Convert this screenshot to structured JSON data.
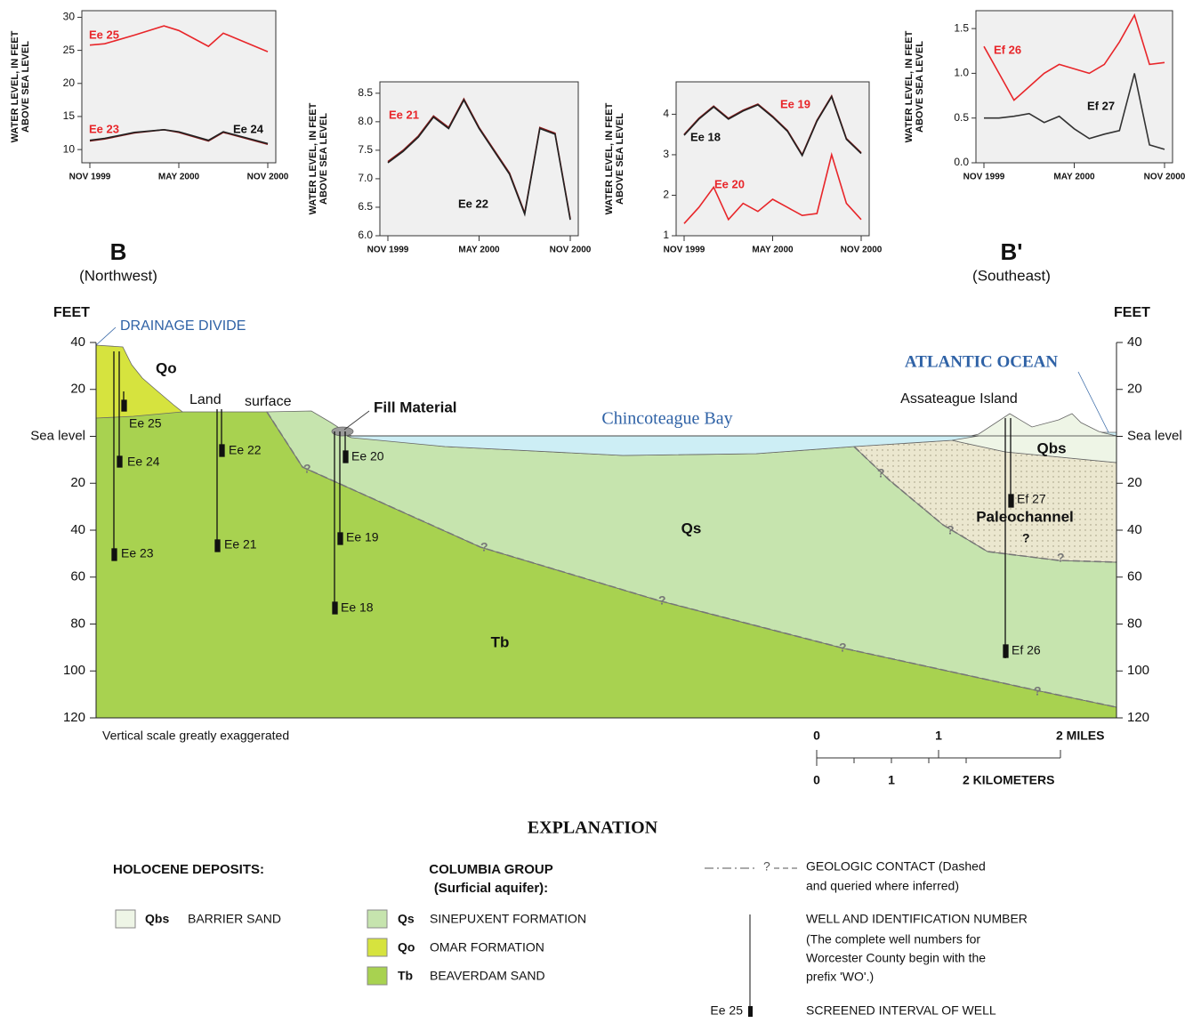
{
  "chart_data": [
    {
      "type": "line",
      "ylabel": [
        "WATER LEVEL, IN FEET",
        "ABOVE SEA LEVEL"
      ],
      "x": [
        "1999-11",
        "1999-12",
        "2000-02",
        "2000-04",
        "2000-05",
        "2000-07",
        "2000-08",
        "2000-11"
      ],
      "xlim": [
        "1999-11",
        "2000-11"
      ],
      "xticks": [
        {
          "value": "1999-11",
          "label": "NOV 1999"
        },
        {
          "value": "2000-05",
          "label": "MAY 2000"
        },
        {
          "value": "2000-11",
          "label": "NOV 2000"
        }
      ],
      "ylim": [
        8,
        31
      ],
      "yticks": [
        10,
        15,
        20,
        25,
        30
      ],
      "series": [
        {
          "name": "Ee 25",
          "color": "#e8262a",
          "label_color": "#e8262a",
          "values": [
            25.8,
            26.0,
            27.3,
            28.7,
            28.0,
            25.6,
            27.6,
            24.8
          ]
        },
        {
          "name": "Ee 23",
          "color": "#8b1a1a",
          "label_color": "#e8262a",
          "values": [
            11.3,
            11.6,
            12.5,
            13.0,
            12.6,
            11.3,
            12.6,
            10.8
          ]
        },
        {
          "name": "Ee 24",
          "color": "#222222",
          "label_color": "#111111",
          "values": [
            11.4,
            11.7,
            12.6,
            13.0,
            12.7,
            11.4,
            12.7,
            10.9
          ]
        }
      ]
    },
    {
      "type": "line",
      "ylabel": [
        "WATER LEVEL, IN FEET",
        "ABOVE SEA LEVEL"
      ],
      "x": [
        "1999-11",
        "1999-12",
        "2000-01",
        "2000-02",
        "2000-03",
        "2000-04",
        "2000-05",
        "2000-06",
        "2000-07",
        "2000-08",
        "2000-09",
        "2000-10",
        "2000-11"
      ],
      "xlim": [
        "1999-11",
        "2000-11"
      ],
      "xticks": [
        {
          "value": "1999-11",
          "label": "NOV 1999"
        },
        {
          "value": "2000-05",
          "label": "MAY 2000"
        },
        {
          "value": "2000-11",
          "label": "NOV 2000"
        }
      ],
      "ylim": [
        6,
        8.7
      ],
      "yticks": [
        {
          "value": 6,
          "label": "6.0"
        },
        6.5,
        {
          "value": 7,
          "label": "7.0"
        },
        7.5,
        {
          "value": 8,
          "label": "8.0"
        },
        8.5
      ],
      "series": [
        {
          "name": "Ee 21",
          "color": "#8b1a1a",
          "label_color": "#e8262a",
          "values": [
            7.3,
            7.5,
            7.75,
            8.1,
            7.9,
            8.4,
            7.9,
            7.5,
            7.1,
            6.4,
            7.9,
            7.8,
            6.3
          ]
        },
        {
          "name": "Ee 22",
          "color": "#222222",
          "label_color": "#111111",
          "values": [
            7.28,
            7.48,
            7.73,
            8.08,
            7.88,
            8.38,
            7.88,
            7.48,
            7.08,
            6.38,
            7.88,
            7.78,
            6.28
          ]
        }
      ]
    },
    {
      "type": "line",
      "ylabel": [
        "WATER LEVEL, IN FEET",
        "ABOVE SEA LEVEL"
      ],
      "x": [
        "1999-11",
        "1999-12",
        "2000-01",
        "2000-02",
        "2000-03",
        "2000-04",
        "2000-05",
        "2000-06",
        "2000-07",
        "2000-08",
        "2000-09",
        "2000-10",
        "2000-11"
      ],
      "xlim": [
        "1999-11",
        "2000-11"
      ],
      "xticks": [
        {
          "value": "1999-11",
          "label": "NOV 1999"
        },
        {
          "value": "2000-05",
          "label": "MAY 2000"
        },
        {
          "value": "2000-11",
          "label": "NOV 2000"
        }
      ],
      "ylim": [
        1,
        4.8
      ],
      "yticks": [
        1,
        2,
        3,
        4
      ],
      "series": [
        {
          "name": "Ee 19",
          "color": "#8b1a1a",
          "label_color": "#e8262a",
          "values": [
            3.5,
            3.9,
            4.2,
            3.9,
            4.1,
            4.25,
            3.95,
            3.6,
            3.0,
            3.85,
            4.45,
            3.4,
            3.05
          ]
        },
        {
          "name": "Ee 18",
          "color": "#222222",
          "label_color": "#111111",
          "values": [
            3.48,
            3.88,
            4.18,
            3.88,
            4.08,
            4.23,
            3.93,
            3.58,
            2.98,
            3.83,
            4.43,
            3.38,
            3.03
          ]
        },
        {
          "name": "Ee 20",
          "color": "#e8262a",
          "label_color": "#e8262a",
          "values": [
            1.3,
            1.7,
            2.2,
            1.4,
            1.8,
            1.6,
            1.9,
            1.7,
            1.5,
            1.55,
            3.0,
            1.8,
            1.4
          ]
        }
      ]
    },
    {
      "type": "line",
      "ylabel": [
        "WATER LEVEL, IN FEET",
        "ABOVE SEA LEVEL"
      ],
      "x": [
        "1999-11",
        "1999-12",
        "2000-01",
        "2000-02",
        "2000-03",
        "2000-04",
        "2000-05",
        "2000-06",
        "2000-07",
        "2000-08",
        "2000-09",
        "2000-10",
        "2000-11"
      ],
      "xlim": [
        "1999-11",
        "2000-11"
      ],
      "xticks": [
        {
          "value": "1999-11",
          "label": "NOV 1999"
        },
        {
          "value": "2000-05",
          "label": "MAY 2000"
        },
        {
          "value": "2000-11",
          "label": "NOV 2000"
        }
      ],
      "ylim": [
        0,
        1.7
      ],
      "yticks": [
        {
          "value": 0,
          "label": "0.0"
        },
        0.5,
        {
          "value": 1,
          "label": "1.0"
        },
        1.5
      ],
      "series": [
        {
          "name": "Ef 26",
          "color": "#e8262a",
          "label_color": "#e8262a",
          "values": [
            1.3,
            1.0,
            0.7,
            0.85,
            1.0,
            1.1,
            1.05,
            1.0,
            1.1,
            1.35,
            1.65,
            1.1,
            1.12
          ]
        },
        {
          "name": "Ef 27",
          "color": "#333333",
          "label_color": "#111111",
          "values": [
            0.5,
            0.5,
            0.52,
            0.55,
            0.45,
            0.52,
            0.38,
            0.27,
            0.32,
            0.36,
            1.0,
            0.2,
            0.15
          ]
        }
      ]
    }
  ],
  "cross_section": {
    "left_end": "B",
    "left_direction": "(Northwest)",
    "right_end": "B'",
    "right_direction": "(Southeast)",
    "axis_title": "FEET",
    "ylim": [
      -120,
      40
    ],
    "yticks": [
      40,
      20,
      {
        "value": 0,
        "label": "Sea level"
      },
      {
        "value": -20,
        "label": "20"
      },
      {
        "value": -40,
        "label": "40"
      },
      {
        "value": -60,
        "label": "60"
      },
      {
        "value": -80,
        "label": "80"
      },
      {
        "value": -100,
        "label": "100"
      },
      {
        "value": -120,
        "label": "120"
      }
    ],
    "labels": {
      "drainage_divide": "DRAINAGE DIVIDE",
      "land": "Land",
      "surface": "surface",
      "fill": "Fill Material",
      "bay": "Chincoteague Bay",
      "ocean": "ATLANTIC OCEAN",
      "island": "Assateague Island",
      "qo": "Qo",
      "tb": "Tb",
      "qs": "Qs",
      "qbs": "Qbs",
      "paleochannel": "Paleochannel",
      "query": "?"
    },
    "wells": [
      "Ee 25",
      "Ee 24",
      "Ee 23",
      "Ee 22",
      "Ee 21",
      "Ee 20",
      "Ee 19",
      "Ee 18",
      "Ef 27",
      "Ef 26"
    ],
    "note": "Vertical scale greatly exaggerated",
    "scale": {
      "miles": [
        "0",
        "1",
        "2 MILES"
      ],
      "kilometers": [
        "0",
        "1",
        "2 KILOMETERS"
      ]
    }
  },
  "explanation": {
    "title": "EXPLANATION",
    "holocene": "HOLOCENE DEPOSITS:",
    "columbia": [
      "COLUMBIA GROUP",
      "(Surficial aquifer):"
    ],
    "units": [
      {
        "code": "Qbs",
        "name": "BARRIER SAND"
      },
      {
        "code": "Qs",
        "name": "SINEPUXENT FORMATION"
      },
      {
        "code": "Qo",
        "name": "OMAR FORMATION"
      },
      {
        "code": "Tb",
        "name": "BEAVERDAM SAND"
      }
    ],
    "contact_mark": "?",
    "contact": [
      "GEOLOGIC CONTACT (Dashed",
      "and queried where inferred)"
    ],
    "well": [
      "WELL AND IDENTIFICATION NUMBER",
      "(The complete well numbers for",
      "Worcester County begin with the",
      "prefix 'WO'.)"
    ],
    "screen_example": "Ee 25",
    "screen": "SCREENED INTERVAL OF WELL"
  }
}
